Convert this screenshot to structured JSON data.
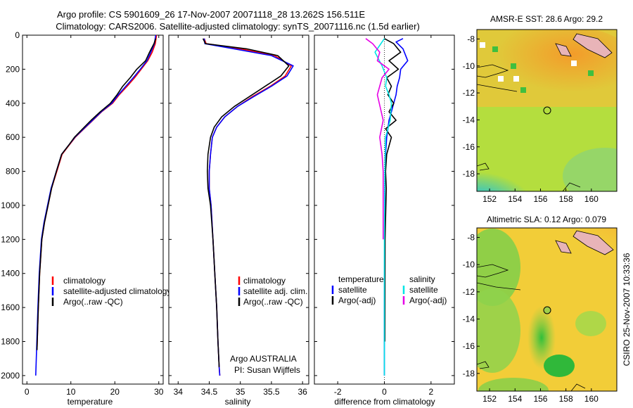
{
  "header": {
    "line1": "Argo profile: CS 5901609_26 17-Nov-2007 20071118_28 13.262S 156.511E",
    "line2": "Climatology: CARS2006. Satellite-adjusted climatology: synTS_20071116.nc (1.5d earlier)"
  },
  "side_label": "CSIRO 25-Nov-2007 10:33:36",
  "colors": {
    "climatology": "#ff0000",
    "satellite": "#0000ff",
    "argo": "#000000",
    "satellite_diff": "#00e5e5",
    "argo_salinity_diff": "#e600e6",
    "map_warm": "#f5a623",
    "map_land": "#e8b4b8",
    "map_cold": "#3aa0ff"
  },
  "chart_data": [
    {
      "type": "line",
      "id": "temperature-profile",
      "xlabel": "temperature",
      "ylabel": "",
      "xlim": [
        -1,
        31
      ],
      "ylim": [
        0,
        2050
      ],
      "y_reversed": true,
      "x_ticks": [
        0,
        10,
        20,
        30
      ],
      "y_ticks": [
        0,
        200,
        400,
        600,
        800,
        1000,
        1200,
        1400,
        1600,
        1800,
        2000
      ],
      "legend": [
        "climatology",
        "satellite-adjusted climatology",
        "Argo(..raw -QC)"
      ],
      "legend_position": "lower-right",
      "series": [
        {
          "name": "climatology",
          "color_key": "climatology",
          "x": [
            29.5,
            29.2,
            28.5,
            27.5,
            26.0,
            24.5,
            22.8,
            21.0,
            19.5,
            17.0,
            15.0,
            13.0,
            11.0,
            9.5,
            8.0,
            6.8,
            5.6,
            4.8,
            4.0,
            3.4,
            2.9,
            2.6,
            2.3
          ],
          "y": [
            0,
            50,
            100,
            150,
            200,
            250,
            300,
            350,
            400,
            450,
            500,
            550,
            600,
            650,
            700,
            800,
            900,
            1000,
            1100,
            1200,
            1400,
            1600,
            1850
          ]
        },
        {
          "name": "satellite-adjusted climatology",
          "color_key": "satellite",
          "x": [
            29.3,
            29.0,
            28.2,
            27.3,
            25.8,
            24.2,
            22.5,
            20.8,
            19.3,
            16.9,
            14.9,
            12.9,
            10.9,
            9.4,
            7.9,
            6.7,
            5.5,
            4.7,
            3.9,
            3.3,
            2.8,
            2.5,
            2.2,
            2.0
          ],
          "y": [
            0,
            50,
            100,
            150,
            200,
            250,
            300,
            350,
            400,
            450,
            500,
            550,
            600,
            650,
            700,
            800,
            900,
            1000,
            1100,
            1200,
            1400,
            1600,
            1850,
            2000
          ]
        },
        {
          "name": "Argo(..raw -QC)",
          "color_key": "argo",
          "x": [
            29.3,
            28.9,
            27.9,
            27.0,
            25.0,
            23.5,
            21.8,
            20.5,
            19.0,
            16.7,
            14.6,
            12.7,
            10.8,
            9.4,
            7.9,
            6.7,
            5.6,
            4.8,
            4.0,
            3.4,
            2.9,
            2.6,
            2.3
          ],
          "y": [
            20,
            50,
            100,
            150,
            200,
            250,
            300,
            350,
            400,
            450,
            500,
            550,
            600,
            650,
            700,
            800,
            900,
            1000,
            1100,
            1200,
            1400,
            1600,
            1850
          ]
        }
      ]
    },
    {
      "type": "line",
      "id": "salinity-profile",
      "xlabel": "salinity",
      "ylabel": "",
      "xlim": [
        33.85,
        36.1
      ],
      "ylim": [
        0,
        2050
      ],
      "y_reversed": true,
      "x_ticks": [
        34,
        34.5,
        35,
        35.5,
        36
      ],
      "legend": [
        "climatology",
        "satellite adj. clim.",
        "Argo(..raw -QC)"
      ],
      "legend_position": "lower-right",
      "annotations": [
        "Argo AUSTRALIA",
        "PI: Susan Wijffels"
      ],
      "series": [
        {
          "name": "climatology",
          "color_key": "climatology",
          "x": [
            34.42,
            34.45,
            35.0,
            35.55,
            35.82,
            35.72,
            35.48,
            35.2,
            34.95,
            34.75,
            34.62,
            34.55,
            34.52,
            34.5,
            34.5,
            34.53,
            34.56,
            34.59,
            34.62,
            34.64,
            34.66,
            34.67
          ],
          "y": [
            20,
            50,
            80,
            120,
            180,
            240,
            300,
            360,
            420,
            480,
            540,
            600,
            700,
            800,
            900,
            1000,
            1200,
            1400,
            1600,
            1800,
            1950,
            2000
          ]
        },
        {
          "name": "satellite adj. clim.",
          "color_key": "satellite",
          "x": [
            34.42,
            34.43,
            34.9,
            35.5,
            35.85,
            35.75,
            35.5,
            35.22,
            34.95,
            34.75,
            34.62,
            34.55,
            34.52,
            34.5,
            34.5,
            34.53,
            34.56,
            34.59,
            34.62,
            34.64,
            34.66,
            34.67
          ],
          "y": [
            20,
            50,
            80,
            120,
            180,
            240,
            300,
            360,
            420,
            480,
            540,
            600,
            700,
            800,
            900,
            1000,
            1200,
            1400,
            1600,
            1800,
            1950,
            2000
          ]
        },
        {
          "name": "Argo(..raw -QC)",
          "color_key": "argo",
          "x": [
            34.4,
            34.44,
            35.1,
            35.6,
            35.78,
            35.65,
            35.4,
            35.15,
            34.9,
            34.7,
            34.58,
            34.52,
            34.48,
            34.47,
            34.48,
            34.52,
            34.56,
            34.59,
            34.62,
            34.64,
            34.66
          ],
          "y": [
            20,
            50,
            80,
            120,
            180,
            240,
            300,
            360,
            420,
            480,
            540,
            600,
            700,
            800,
            900,
            1000,
            1200,
            1400,
            1600,
            1800,
            1950
          ]
        }
      ]
    },
    {
      "type": "line",
      "id": "difference-profile",
      "xlabel": "difference from climatology",
      "ylabel": "",
      "xlim": [
        -3,
        3
      ],
      "ylim": [
        0,
        2050
      ],
      "y_reversed": true,
      "x_ticks": [
        -2,
        0,
        2
      ],
      "legend_groups": [
        {
          "title": "temperature",
          "entries": [
            "satellite",
            "Argo(-adj)"
          ]
        },
        {
          "title": "salinity",
          "entries": [
            "satellite",
            "Argo(-adj)"
          ]
        }
      ],
      "legend_position": "lower-center",
      "series": [
        {
          "name": "temperature satellite",
          "color_key": "satellite",
          "x": [
            0.8,
            0.5,
            0.8,
            1.0,
            0.7,
            0.65,
            0.55,
            0.5,
            0.4,
            0.3,
            0.2,
            0.15,
            0.1,
            0.05,
            0.03,
            0.02,
            0.01,
            0.0,
            0.0
          ],
          "y": [
            20,
            40,
            80,
            150,
            200,
            250,
            300,
            350,
            400,
            450,
            500,
            550,
            600,
            700,
            800,
            900,
            1200,
            1600,
            2000
          ]
        },
        {
          "name": "temperature Argo(-adj)",
          "color_key": "argo",
          "x": [
            0.0,
            0.4,
            0.7,
            0.2,
            0.6,
            0.1,
            0.3,
            0.15,
            0.4,
            0.2,
            0.5,
            0.05,
            0.3,
            0.1,
            0.05,
            0.08,
            0.03,
            0.02
          ],
          "y": [
            20,
            50,
            100,
            150,
            200,
            250,
            300,
            350,
            400,
            450,
            500,
            550,
            600,
            700,
            800,
            900,
            1200,
            1800
          ]
        },
        {
          "name": "salinity satellite",
          "color_key": "satellite_diff",
          "x": [
            0.0,
            -0.2,
            -0.4,
            -0.1,
            0.1,
            0.05,
            0.2,
            0.3,
            0.25,
            0.05,
            0.02,
            0.0,
            0.0
          ],
          "y": [
            20,
            60,
            100,
            180,
            250,
            300,
            350,
            400,
            500,
            600,
            800,
            1200,
            2000
          ]
        },
        {
          "name": "salinity Argo(-adj)",
          "color_key": "argo_salinity_diff",
          "x": [
            -0.8,
            -0.5,
            -0.2,
            -0.3,
            0.2,
            -0.1,
            -0.3,
            -0.05,
            -0.2,
            -0.1,
            -0.05,
            -0.05
          ],
          "y": [
            20,
            50,
            100,
            150,
            200,
            250,
            350,
            500,
            600,
            700,
            800,
            1200
          ]
        }
      ]
    },
    {
      "type": "heatmap",
      "id": "sst-map",
      "title": "AMSR-E SST: 28.6 Argo: 29.2",
      "xlim": [
        151.0,
        162.0
      ],
      "ylim": [
        -19.3,
        -7.3
      ],
      "x_ticks": [
        152,
        154,
        156,
        158,
        160
      ],
      "y_ticks": [
        -8,
        -10,
        -12,
        -14,
        -16,
        -18
      ],
      "marker": {
        "x": 156.5,
        "y": -13.3
      }
    },
    {
      "type": "heatmap",
      "id": "sla-map",
      "title": "Altimetric SLA: 0.12 Argo: 0.079",
      "xlim": [
        151.0,
        162.0
      ],
      "ylim": [
        -19.3,
        -7.3
      ],
      "x_ticks": [
        152,
        154,
        156,
        158,
        160
      ],
      "y_ticks": [
        -8,
        -10,
        -12,
        -14,
        -16,
        -18
      ],
      "marker": {
        "x": 156.5,
        "y": -13.3
      }
    }
  ]
}
